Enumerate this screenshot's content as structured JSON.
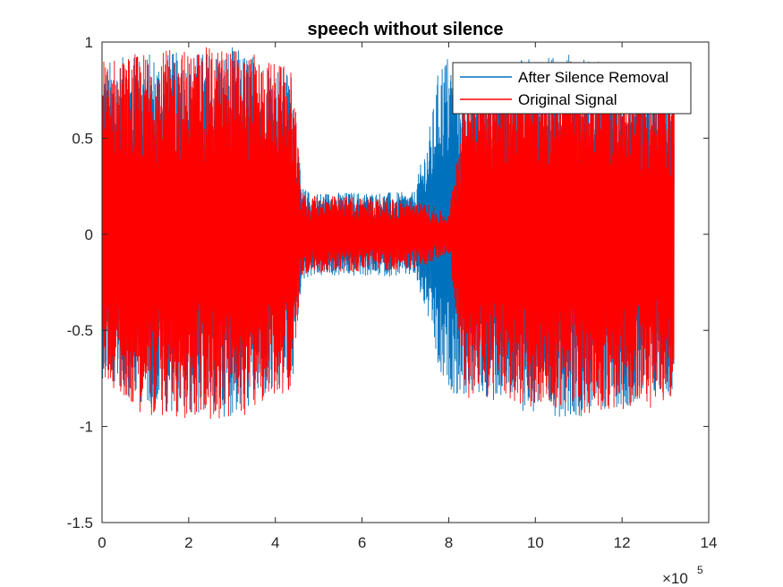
{
  "chart_data": {
    "type": "line",
    "title": "speech without silence",
    "xlabel": "",
    "ylabel": "",
    "x_exponent_label": "×10",
    "x_exponent_power": "5",
    "xlim": [
      0,
      1400000
    ],
    "ylim": [
      -1.5,
      1
    ],
    "x_ticks": [
      0,
      200000,
      400000,
      600000,
      800000,
      1000000,
      1200000,
      1400000
    ],
    "x_tick_labels": [
      "0",
      "2",
      "4",
      "6",
      "8",
      "10",
      "12",
      "14"
    ],
    "y_ticks": [
      -1.5,
      -1,
      -0.5,
      0,
      0.5,
      1
    ],
    "y_tick_labels": [
      "-1.5",
      "-1",
      "-0.5",
      "0",
      "0.5",
      "1"
    ],
    "grid": false,
    "legend_position": "top-right",
    "series": [
      {
        "name": "After Silence Removal",
        "color": "#0072BD",
        "envelope": {
          "x": [
            0,
            100000,
            200000,
            300000,
            400000,
            440000,
            460000,
            480000,
            600000,
            720000,
            760000,
            780000,
            800000,
            820000,
            900000,
            1000000,
            1100000,
            1200000,
            1320000
          ],
          "upper": [
            0.9,
            0.95,
            0.95,
            0.98,
            0.9,
            0.85,
            0.25,
            0.22,
            0.22,
            0.22,
            0.6,
            0.92,
            0.95,
            0.9,
            0.9,
            0.92,
            0.95,
            0.85,
            0.8
          ],
          "lower": [
            -0.75,
            -0.9,
            -0.95,
            -0.95,
            -0.85,
            -0.8,
            -0.25,
            -0.22,
            -0.22,
            -0.22,
            -0.5,
            -0.8,
            -0.8,
            -0.85,
            -0.85,
            -0.95,
            -0.95,
            -0.9,
            -0.85
          ]
        }
      },
      {
        "name": "Original Signal",
        "color": "#FF0000",
        "envelope": {
          "x": [
            0,
            100000,
            200000,
            300000,
            400000,
            440000,
            460000,
            480000,
            600000,
            720000,
            760000,
            800000,
            840000,
            900000,
            1000000,
            1100000,
            1200000,
            1320000
          ],
          "upper": [
            0.92,
            0.95,
            0.97,
            0.98,
            0.9,
            0.85,
            0.22,
            0.2,
            0.2,
            0.18,
            0.15,
            0.1,
            0.85,
            0.88,
            0.9,
            0.9,
            0.85,
            0.8
          ],
          "lower": [
            -0.75,
            -0.95,
            -0.97,
            -0.98,
            -0.85,
            -0.8,
            -0.22,
            -0.2,
            -0.2,
            -0.18,
            -0.15,
            -0.1,
            -0.85,
            -0.88,
            -0.9,
            -0.95,
            -0.92,
            -0.9
          ]
        }
      }
    ]
  }
}
